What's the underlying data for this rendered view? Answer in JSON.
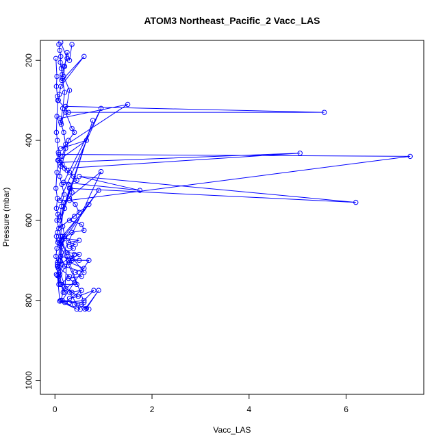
{
  "chart_data": {
    "type": "line",
    "title": "ATOM3 Northeast_Pacific_2 Vacc_LAS",
    "xlabel": "Vacc_LAS",
    "ylabel": "Pressure (mbar)",
    "xlim": [
      -0.3,
      7.6
    ],
    "ylim": [
      1035,
      150
    ],
    "y_reversed": true,
    "xticks": [
      0,
      2,
      4,
      6
    ],
    "yticks": [
      200,
      400,
      600,
      800,
      1000
    ],
    "grid": false,
    "legend": "none",
    "colors": {
      "series": "#0000ff"
    },
    "series": [
      {
        "x": [
          0.08,
          0.1,
          0.12,
          0.11,
          0.13,
          0.15,
          0.14,
          0.6,
          0.12,
          0.09,
          0.07,
          0.28,
          5.55,
          0.22,
          0.13,
          0.1,
          1.5,
          0.12,
          0.65,
          0.07,
          0.2,
          5.05,
          0.1,
          0.08,
          7.32,
          0.3,
          0.1,
          0.95,
          0.18,
          1.75,
          0.5,
          6.2,
          0.3,
          0.1,
          0.78,
          0.2,
          0.08,
          0.7,
          0.15,
          0.1,
          0.12,
          0.9,
          0.13,
          0.1,
          0.95,
          0.18,
          0.06,
          0.08,
          0.4,
          0.05,
          0.3,
          0.12,
          0.45,
          0.07,
          0.6,
          0.2,
          0.12,
          0.5,
          0.35,
          0.7,
          0.15,
          0.1,
          0.05,
          0.2,
          0.25,
          0.15,
          0.08,
          0.05,
          0.22,
          0.48,
          0.8,
          0.6,
          0.3,
          0.55,
          0.65,
          0.9,
          0.62,
          0.7,
          0.4,
          0.52,
          0.3,
          0.55,
          0.2,
          0.45,
          0.1,
          0.6,
          0.25,
          0.12
        ],
        "y": [
          160,
          175,
          190,
          205,
          220,
          235,
          250,
          190,
          265,
          285,
          300,
          330,
          330,
          315,
          360,
          345,
          310,
          420,
          400,
          450,
          470,
          432,
          455,
          435,
          440,
          550,
          550,
          320,
          505,
          525,
          490,
          555,
          520,
          600,
          350,
          570,
          620,
          560,
          640,
          658,
          660,
          525,
          650,
          700,
          478,
          555,
          715,
          740,
          685,
          715,
          740,
          760,
          760,
          650,
          730,
          715,
          690,
          700,
          700,
          700,
          800,
          802,
          738,
          780,
          690,
          650,
          760,
          710,
          770,
          790,
          775,
          800,
          805,
          810,
          820,
          775,
          822,
          822,
          810,
          823,
          780,
          775,
          805,
          822,
          802,
          805,
          690,
          640
        ]
      },
      {
        "x": [
          0.35,
          0.3,
          0.25,
          0.2,
          0.18,
          0.3,
          0.22,
          0.35,
          0.4,
          0.28,
          0.22,
          0.15,
          0.25,
          0.3,
          0.38,
          0.45,
          0.28,
          0.32,
          0.35,
          0.3,
          0.42,
          0.5,
          0.4,
          0.3,
          0.55,
          0.6,
          0.35,
          0.2,
          0.5,
          0.28,
          0.42,
          0.3,
          0.38,
          0.25,
          0.5,
          0.35,
          0.3,
          0.6,
          0.42,
          0.55,
          0.28,
          0.4,
          0.22,
          0.35,
          0.48,
          0.3
        ],
        "y": [
          160,
          200,
          180,
          215,
          240,
          275,
          330,
          370,
          380,
          400,
          420,
          460,
          475,
          480,
          490,
          500,
          510,
          520,
          530,
          545,
          560,
          580,
          590,
          600,
          610,
          625,
          630,
          645,
          650,
          655,
          660,
          665,
          670,
          680,
          685,
          695,
          705,
          720,
          730,
          740,
          745,
          755,
          770,
          780,
          790,
          795
        ]
      },
      {
        "x": [
          0.02,
          0.04,
          0.03,
          0.05,
          0.06,
          0.04,
          0.03,
          0.05,
          0.07,
          0.06,
          0.04,
          0.02,
          0.05,
          0.03,
          0.06,
          0.04,
          0.08,
          0.05,
          0.03,
          0.06,
          0.04,
          0.02,
          0.05,
          0.07,
          0.03
        ],
        "y": [
          195,
          240,
          265,
          290,
          300,
          340,
          380,
          400,
          430,
          450,
          480,
          520,
          545,
          570,
          585,
          600,
          620,
          630,
          640,
          655,
          670,
          690,
          705,
          720,
          735
        ]
      },
      {
        "x": [
          0.12,
          0.25,
          0.18,
          0.15,
          0.2,
          0.16,
          0.12,
          0.18,
          0.22,
          0.15,
          0.12,
          0.1,
          0.14,
          0.19,
          0.13,
          0.11,
          0.16,
          0.2,
          0.14,
          0.12,
          0.15,
          0.1,
          0.13,
          0.17,
          0.12
        ],
        "y": [
          155,
          195,
          215,
          245,
          280,
          320,
          355,
          380,
          410,
          440,
          465,
          490,
          510,
          535,
          565,
          590,
          615,
          640,
          665,
          690,
          710,
          735,
          760,
          780,
          800
        ]
      }
    ]
  }
}
